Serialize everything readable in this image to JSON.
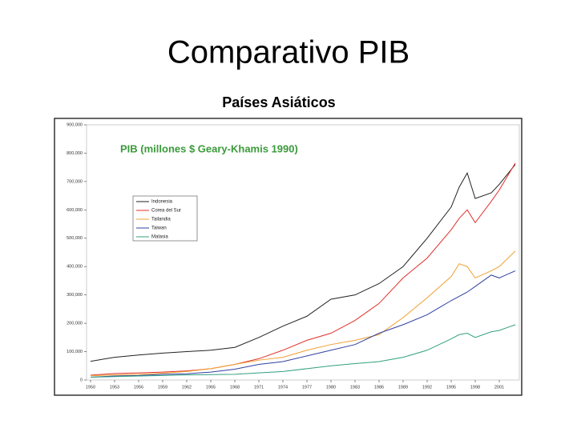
{
  "slide_title": "Comparativo PIB",
  "slide_subtitle": "Países Asiáticos",
  "chart_data": {
    "type": "line",
    "title": "PIB (millones $ Geary-Khamis 1990)",
    "title_color": "#3a9a3a",
    "x": [
      1950,
      1953,
      1956,
      1959,
      1962,
      1965,
      1968,
      1971,
      1974,
      1977,
      1980,
      1983,
      1986,
      1989,
      1992,
      1995,
      1996,
      1997,
      1998,
      2000,
      2001,
      2003
    ],
    "series": [
      {
        "name": "Indonesia",
        "color": "#222222",
        "values": [
          66000,
          80000,
          88000,
          95000,
          100000,
          105000,
          115000,
          150000,
          190000,
          225000,
          285000,
          300000,
          340000,
          400000,
          500000,
          610000,
          680000,
          730000,
          640000,
          660000,
          690000,
          760000
        ]
      },
      {
        "name": "Corea del Sur",
        "color": "#e0302a",
        "values": [
          17000,
          23000,
          25000,
          28000,
          32000,
          40000,
          55000,
          75000,
          105000,
          140000,
          165000,
          210000,
          270000,
          360000,
          430000,
          530000,
          570000,
          600000,
          555000,
          630000,
          670000,
          765000
        ]
      },
      {
        "name": "Tailandia",
        "color": "#f0a030",
        "values": [
          15000,
          18000,
          20000,
          24000,
          30000,
          40000,
          55000,
          70000,
          80000,
          105000,
          125000,
          140000,
          160000,
          220000,
          290000,
          365000,
          410000,
          400000,
          360000,
          385000,
          400000,
          455000
        ]
      },
      {
        "name": "Taiwan",
        "color": "#3040a0",
        "values": [
          10000,
          14000,
          16000,
          20000,
          22000,
          28000,
          38000,
          55000,
          65000,
          85000,
          105000,
          125000,
          165000,
          195000,
          230000,
          280000,
          295000,
          310000,
          330000,
          370000,
          360000,
          385000
        ]
      },
      {
        "name": "Malasia",
        "color": "#30a080",
        "values": [
          10000,
          12000,
          14000,
          16000,
          18000,
          19000,
          20000,
          25000,
          30000,
          40000,
          50000,
          58000,
          65000,
          80000,
          105000,
          145000,
          160000,
          165000,
          150000,
          170000,
          175000,
          195000
        ]
      }
    ],
    "xlim": [
      1949.5,
      2003.5
    ],
    "xticks": [
      1950,
      1953,
      1956,
      1959,
      1962,
      1965,
      1968,
      1971,
      1974,
      1977,
      1980,
      1983,
      1986,
      1989,
      1992,
      1995,
      1998,
      2001
    ],
    "ylim": [
      0,
      900000
    ],
    "yticks": [
      0,
      {
        "value": 100000,
        "label": "100,000"
      },
      {
        "value": 200000,
        "label": "200,000"
      },
      {
        "value": 300000,
        "label": "300,000"
      },
      {
        "value": 400000,
        "label": "400,000"
      },
      {
        "value": 500000,
        "label": "500,000"
      },
      {
        "value": 600000,
        "label": "600,000"
      },
      {
        "value": 700000,
        "label": "700,000"
      },
      {
        "value": 800000,
        "label": "800,000"
      },
      {
        "value": 900000,
        "label": "900,000"
      }
    ]
  }
}
